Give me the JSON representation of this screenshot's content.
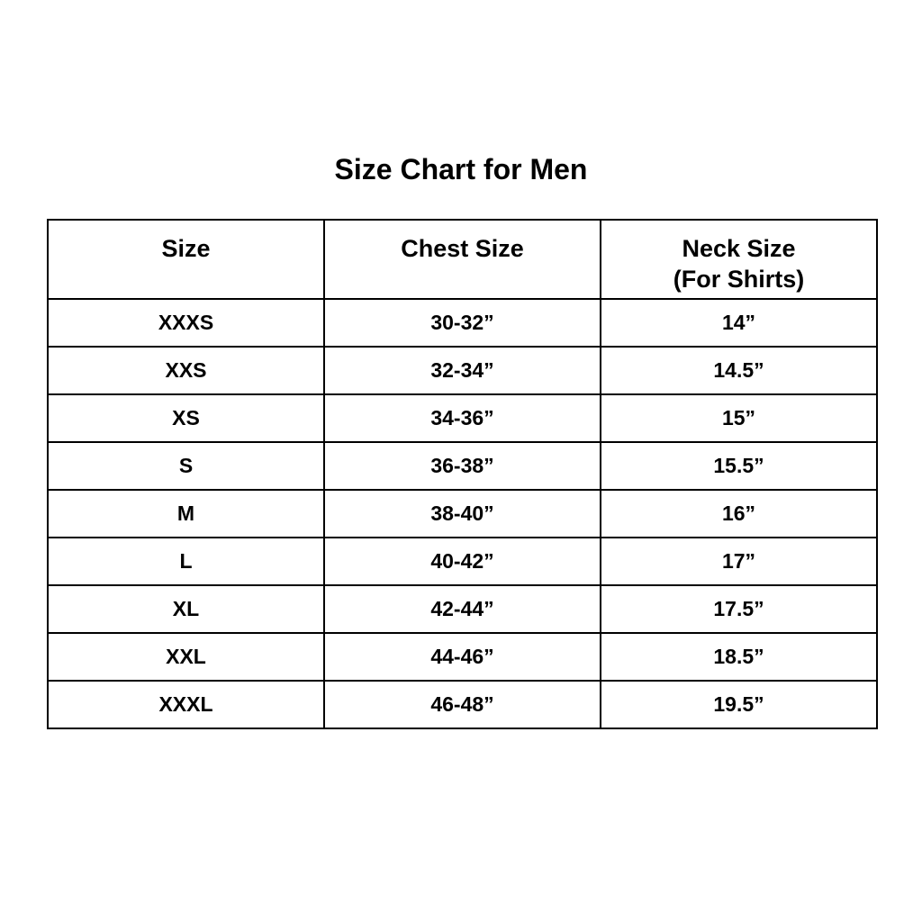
{
  "title": "Size Chart for Men",
  "headers": {
    "size": "Size",
    "chest": "Chest Size",
    "neck_line1": "Neck Size",
    "neck_line2": "(For Shirts)"
  },
  "rows": [
    {
      "size": "XXXS",
      "chest": "30-32”",
      "neck": "14”"
    },
    {
      "size": "XXS",
      "chest": "32-34”",
      "neck": "14.5”"
    },
    {
      "size": "XS",
      "chest": "34-36”",
      "neck": "15”"
    },
    {
      "size": "S",
      "chest": "36-38”",
      "neck": "15.5”"
    },
    {
      "size": "M",
      "chest": "38-40”",
      "neck": "16”"
    },
    {
      "size": "L",
      "chest": "40-42”",
      "neck": "17”"
    },
    {
      "size": "XL",
      "chest": "42-44”",
      "neck": "17.5”"
    },
    {
      "size": "XXL",
      "chest": "44-46”",
      "neck": "18.5”"
    },
    {
      "size": "XXXL",
      "chest": "46-48”",
      "neck": "19.5”"
    }
  ]
}
